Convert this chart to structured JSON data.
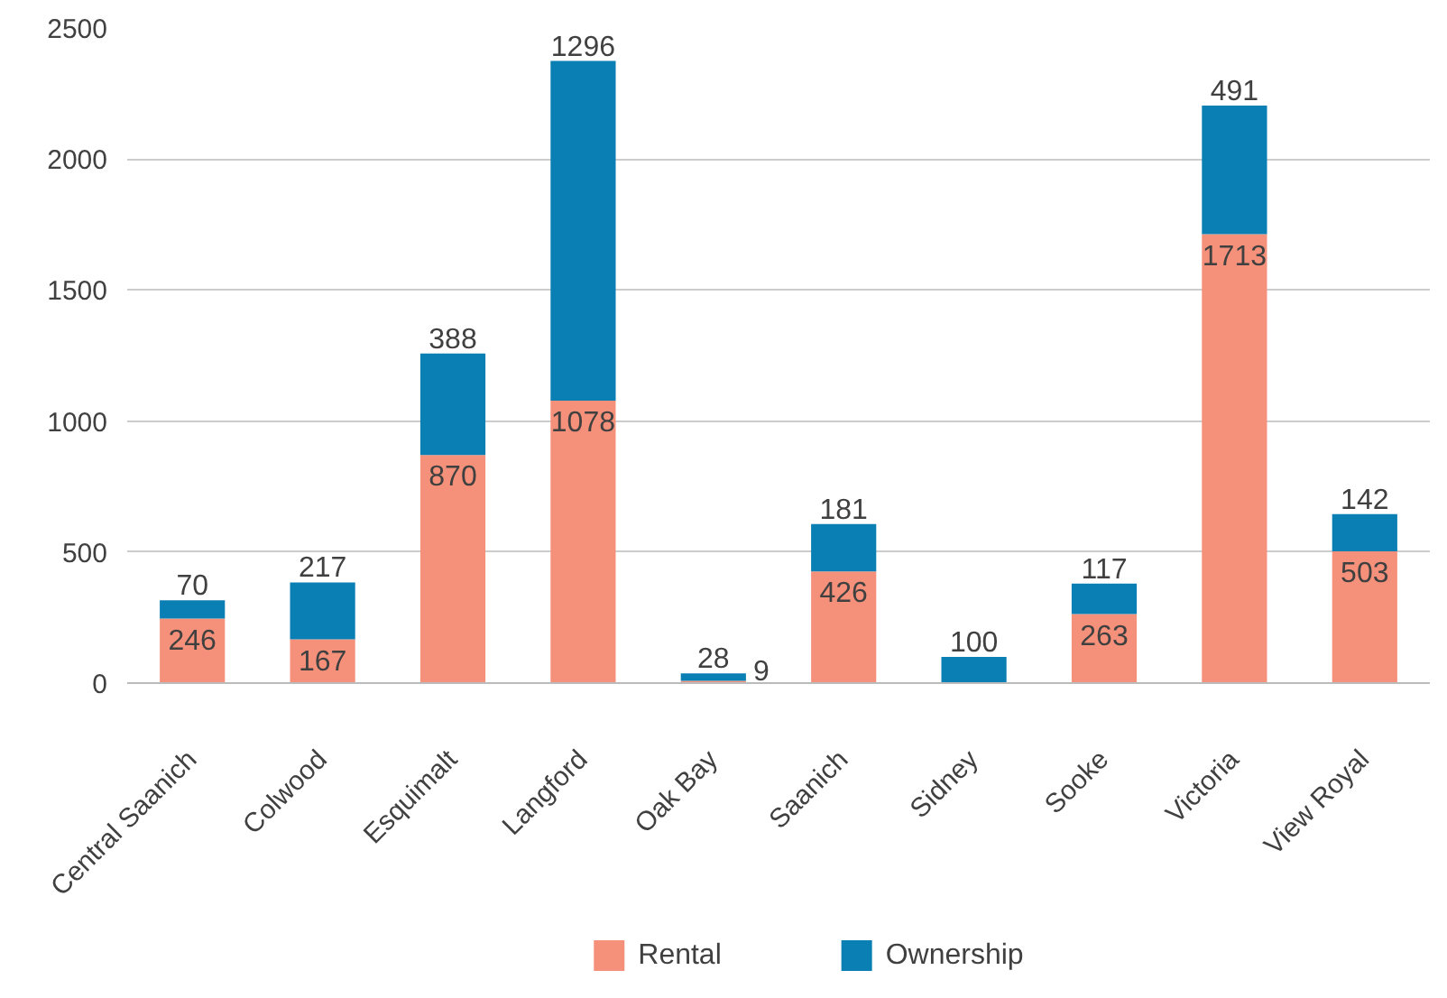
{
  "chart_data": {
    "type": "bar",
    "stacked": true,
    "categories": [
      "Central Saanich",
      "Colwood",
      "Esquimalt",
      "Langford",
      "Oak Bay",
      "Saanich",
      "Sidney",
      "Sooke",
      "Victoria",
      "View Royal"
    ],
    "series": [
      {
        "name": "Rental",
        "color": "#f5917a",
        "values": [
          246,
          167,
          870,
          1078,
          9,
          426,
          null,
          263,
          1713,
          503
        ]
      },
      {
        "name": "Ownership",
        "color": "#0a7fb4",
        "values": [
          70,
          217,
          388,
          1296,
          28,
          181,
          100,
          117,
          491,
          142
        ]
      }
    ],
    "ylim": [
      0,
      2500
    ],
    "yticks": [
      0,
      500,
      1000,
      1500,
      2000,
      2500
    ],
    "grid": "y",
    "legend": "bottom",
    "data_labels": true
  }
}
